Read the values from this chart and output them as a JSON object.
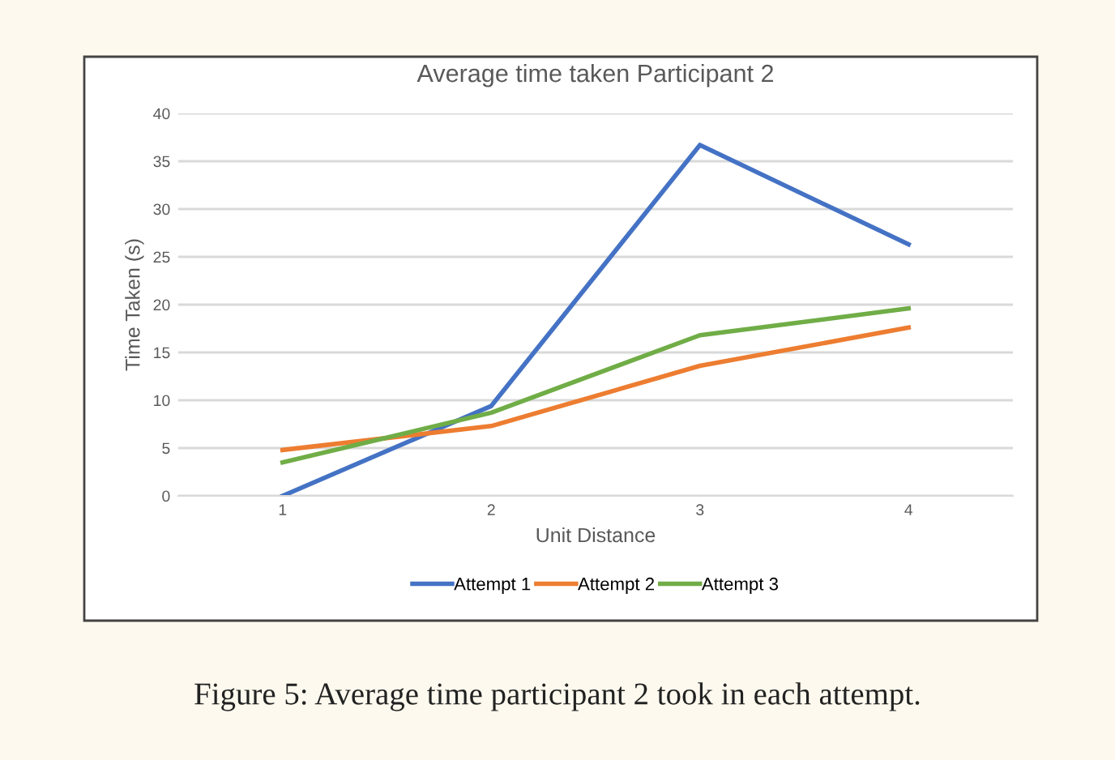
{
  "chart_data": {
    "type": "line",
    "title": "Average time taken Participant 2",
    "xlabel": "Unit Distance",
    "ylabel": "Time Taken (s)",
    "categories": [
      "1",
      "2",
      "3",
      "4"
    ],
    "series": [
      {
        "name": "Attempt 1",
        "color": "#4472c4",
        "values": [
          0,
          9.4,
          36.7,
          26.3
        ]
      },
      {
        "name": "Attempt 2",
        "color": "#ed7d31",
        "values": [
          4.8,
          7.3,
          13.6,
          17.6
        ]
      },
      {
        "name": "Attempt 3",
        "color": "#70ad47",
        "values": [
          3.5,
          8.7,
          16.8,
          19.6
        ]
      }
    ],
    "ylim": [
      0,
      40
    ],
    "yticks": [
      0,
      5,
      10,
      15,
      20,
      25,
      30,
      35,
      40
    ],
    "grid": "y",
    "legend": "bottom",
    "marker": "none",
    "line_style": "solid",
    "annotations": [
      "Figure 5: Average time participant 2 took in each attempt."
    ]
  }
}
